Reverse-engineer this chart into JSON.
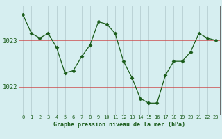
{
  "x": [
    0,
    1,
    2,
    3,
    4,
    5,
    6,
    7,
    8,
    9,
    10,
    11,
    12,
    13,
    14,
    15,
    16,
    17,
    18,
    19,
    20,
    21,
    22,
    23
  ],
  "y": [
    1023.55,
    1023.15,
    1023.05,
    1023.15,
    1022.85,
    1022.3,
    1022.35,
    1022.65,
    1022.9,
    1023.4,
    1023.35,
    1023.15,
    1022.55,
    1022.2,
    1021.75,
    1021.65,
    1021.65,
    1022.25,
    1022.55,
    1022.55,
    1022.75,
    1023.15,
    1023.05,
    1023.0
  ],
  "line_color": "#1a5c1a",
  "marker": "D",
  "marker_size": 2.5,
  "bg_color": "#d6eef0",
  "grid_color": "#b0c8cc",
  "ylabel_ticks": [
    1022,
    1023
  ],
  "xlabel_ticks": [
    0,
    1,
    2,
    3,
    4,
    5,
    6,
    7,
    8,
    9,
    10,
    11,
    12,
    13,
    14,
    15,
    16,
    17,
    18,
    19,
    20,
    21,
    22,
    23
  ],
  "xlabel_labels": [
    "0",
    "1",
    "2",
    "3",
    "4",
    "5",
    "6",
    "7",
    "8",
    "9",
    "10",
    "11",
    "12",
    "13",
    "14",
    "15",
    "16",
    "17",
    "18",
    "19",
    "20",
    "21",
    "22",
    "23"
  ],
  "title": "Graphe pression niveau de la mer (hPa)",
  "title_color": "#1a5c1a",
  "ylim": [
    1021.4,
    1023.75
  ],
  "xlim": [
    -0.5,
    23.5
  ]
}
